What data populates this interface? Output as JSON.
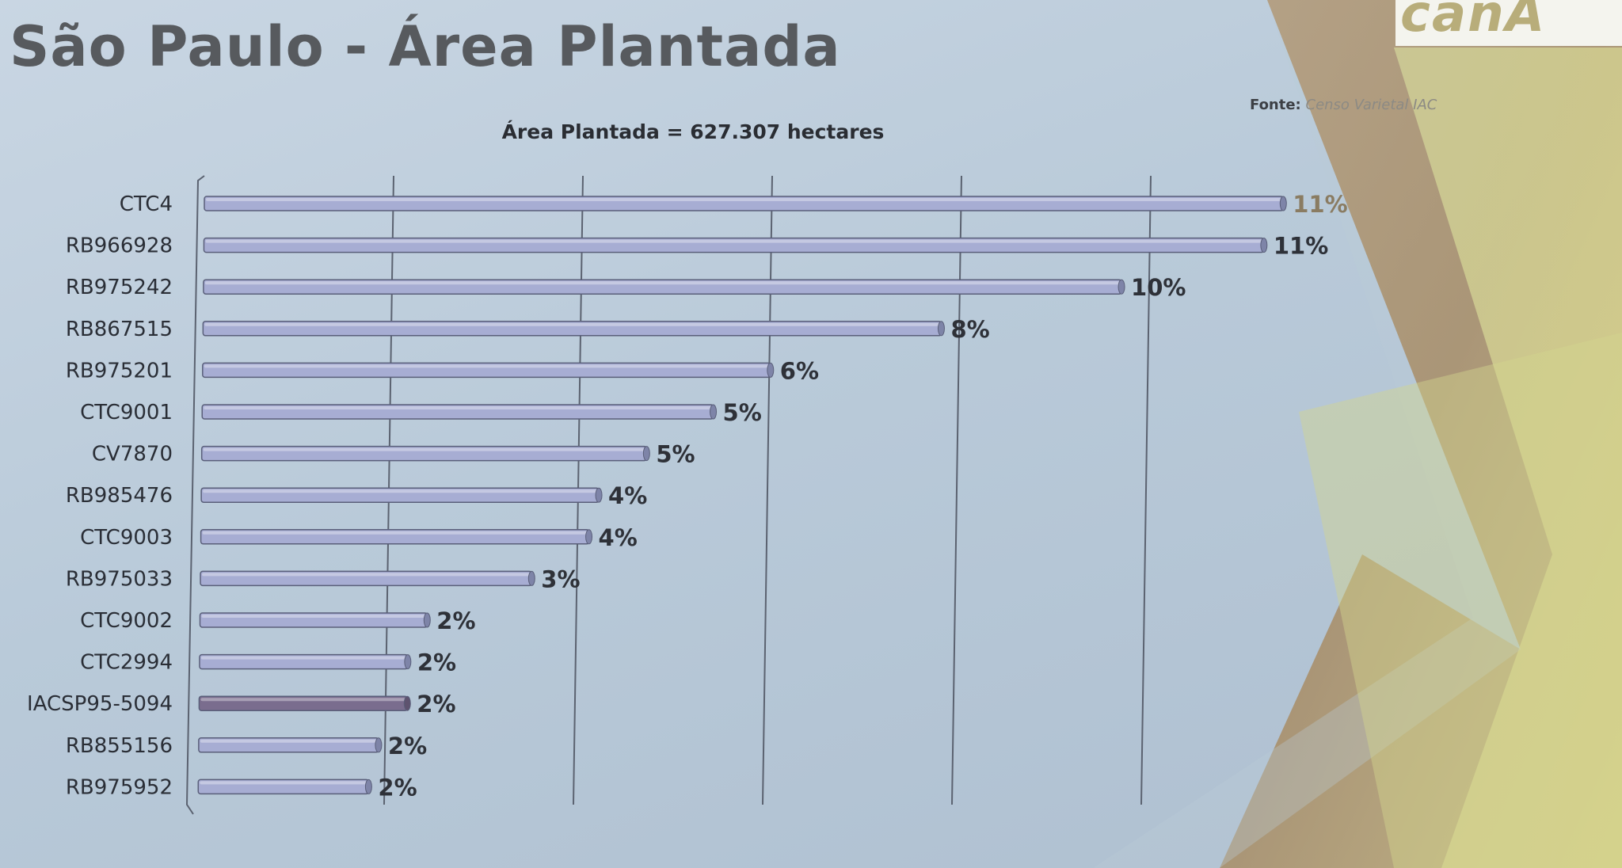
{
  "slide": {
    "title": "São Paulo - Área Plantada",
    "source_label": "Fonte:",
    "source_value": "Censo Varietal IAC",
    "logo_text": "canA"
  },
  "colors": {
    "bar": "#a7add3",
    "bar_highlight": "#7a6d8e",
    "gridline": "#5b6270",
    "title_text": "#575a5e"
  },
  "chart_data": {
    "type": "bar",
    "orientation": "horizontal",
    "title": "Área Plantada = 627.307 hectares",
    "xlabel": "",
    "ylabel": "",
    "categories": [
      "CTC4",
      "RB966928",
      "RB975242",
      "RB867515",
      "RB975201",
      "CTC9001",
      "CV7870",
      "RB985476",
      "CTC9003",
      "RB975033",
      "CTC9002",
      "CTC2994",
      "IACSP95-5094",
      "RB855156",
      "RB975952"
    ],
    "values": [
      11.4,
      11.2,
      9.7,
      7.8,
      6.0,
      5.4,
      4.7,
      4.2,
      4.1,
      3.5,
      2.4,
      2.2,
      2.2,
      1.9,
      1.8
    ],
    "data_labels": [
      "11%",
      "11%",
      "10%",
      "8%",
      "6%",
      "5%",
      "5%",
      "4%",
      "4%",
      "3%",
      "2%",
      "2%",
      "2%",
      "2%",
      "2%"
    ],
    "highlight_category": "IACSP95-5094",
    "xlim": [
      0,
      12
    ],
    "grid": true,
    "legend": "none"
  }
}
